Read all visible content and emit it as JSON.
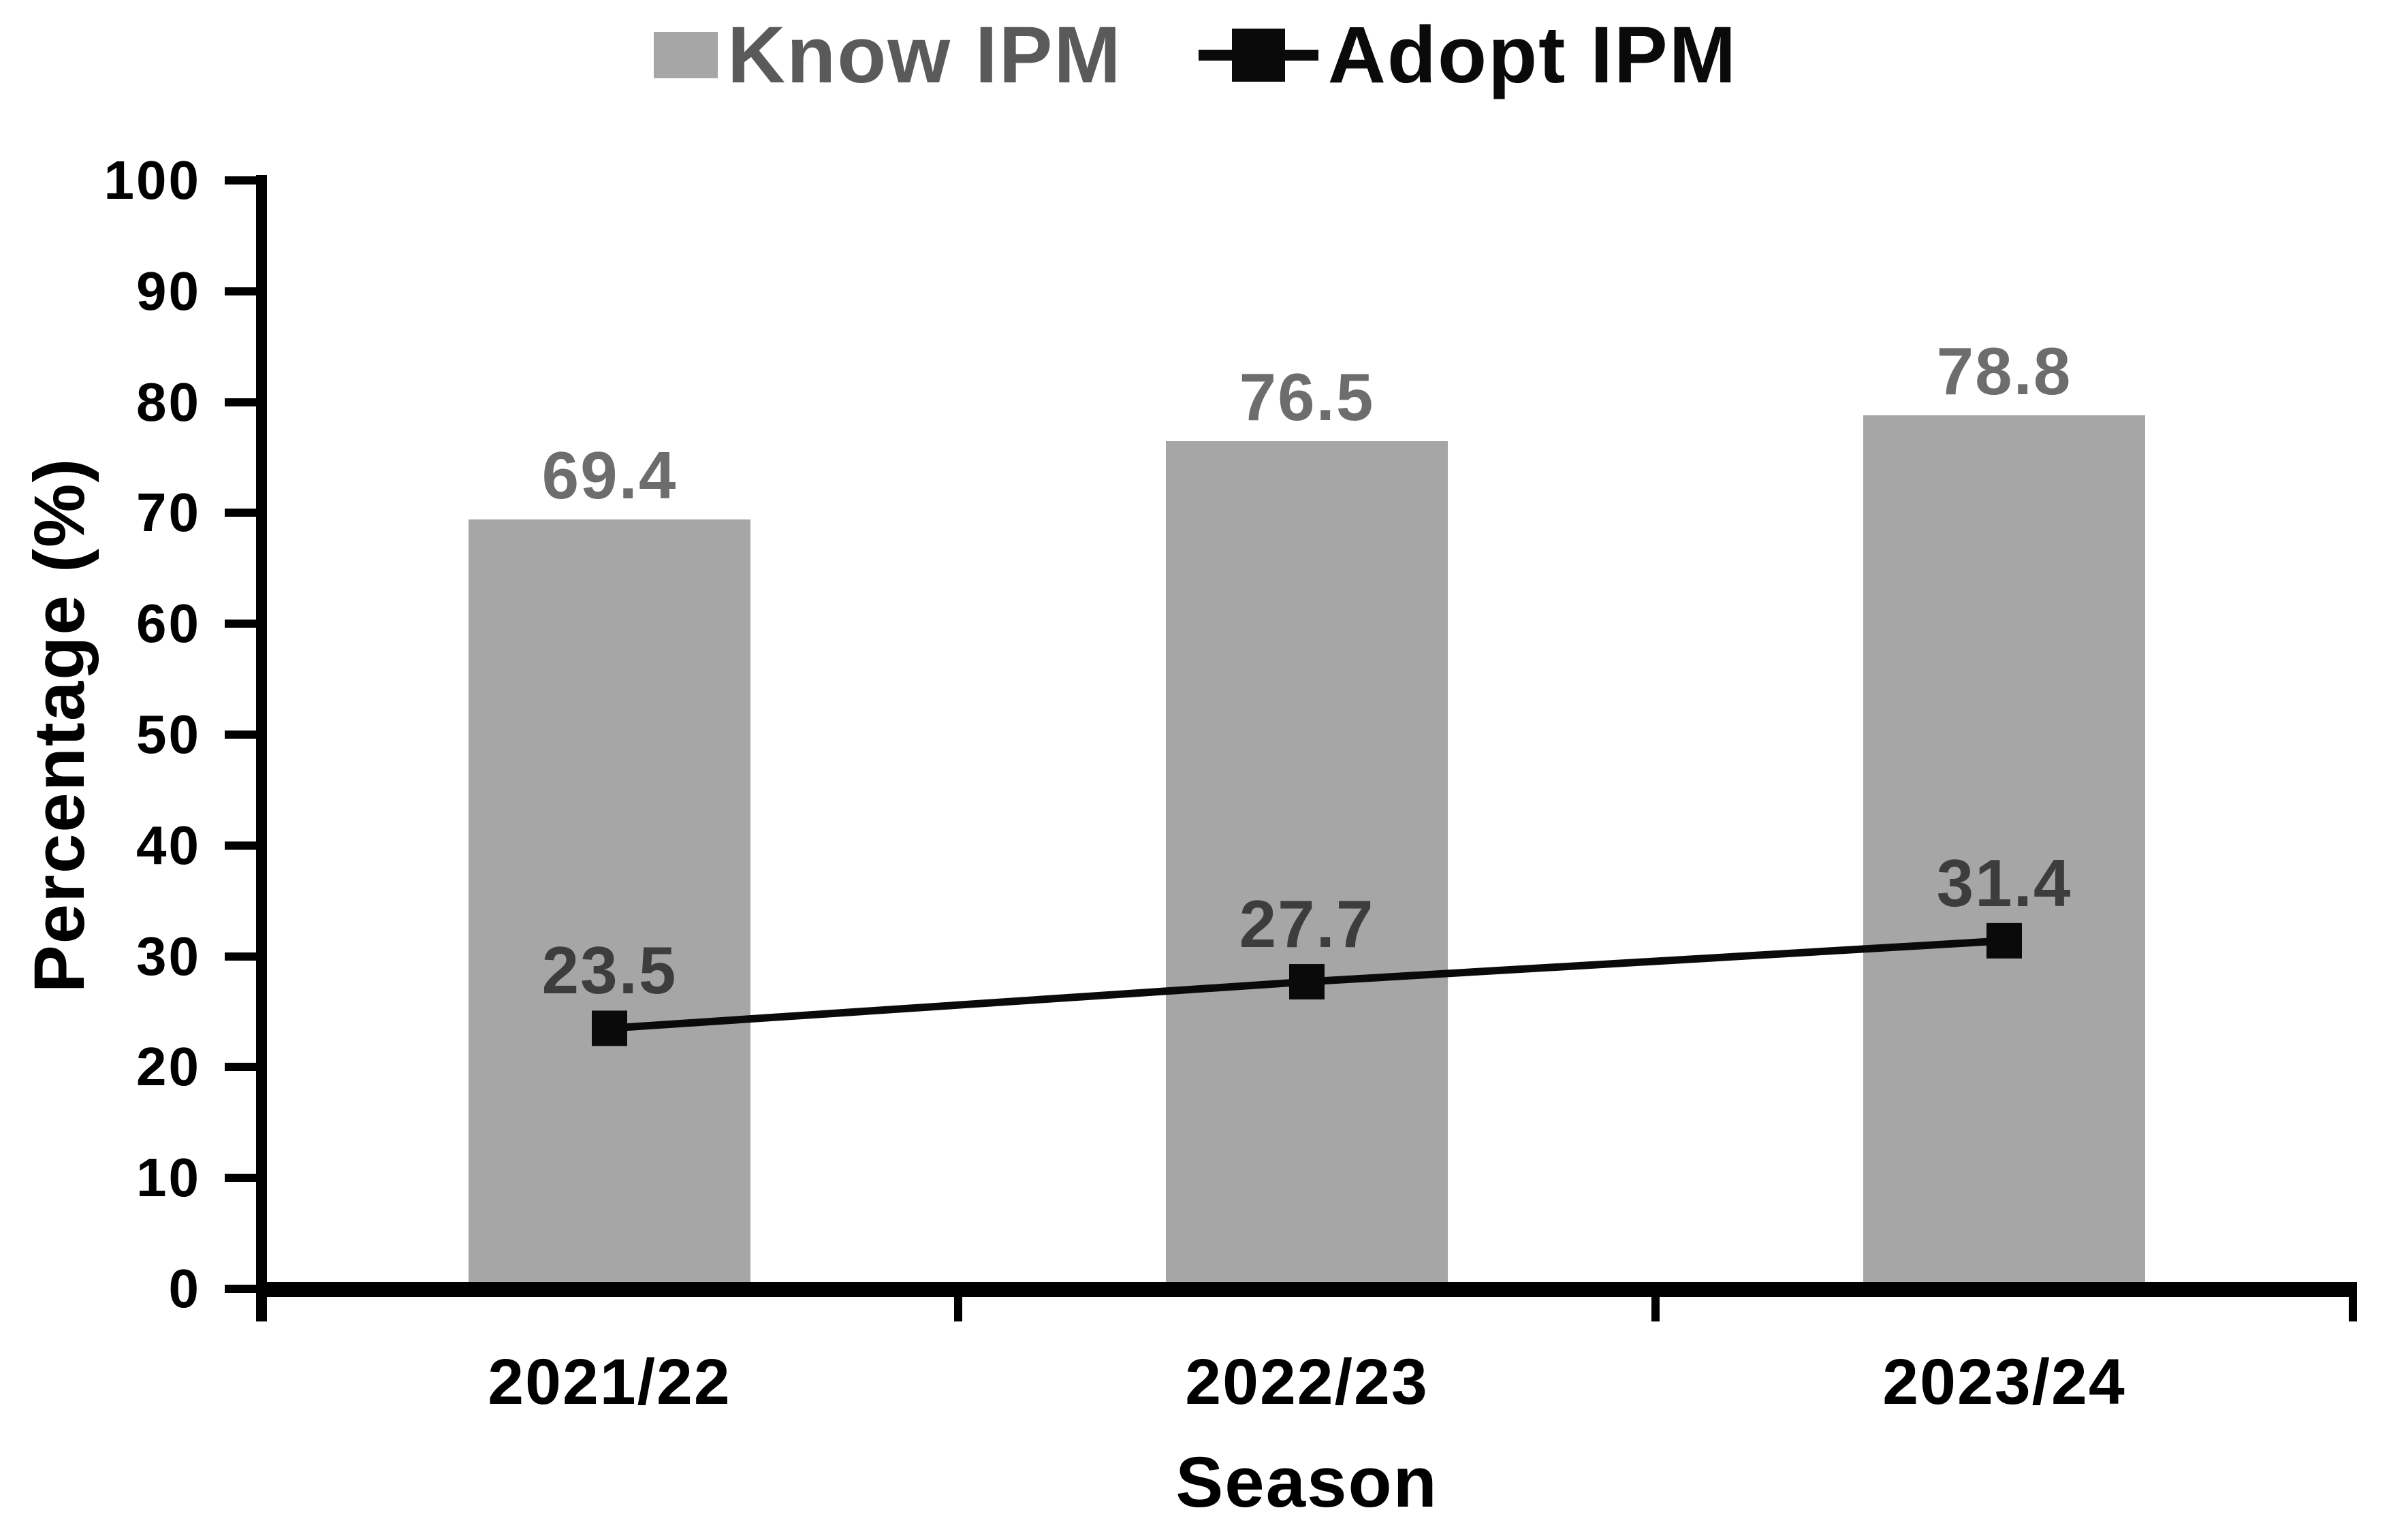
{
  "chart_data": {
    "type": "combo",
    "title": "",
    "categories": [
      "2021/22",
      "2022/23",
      "2023/24"
    ],
    "series": [
      {
        "name": "Know IPM",
        "type": "bar",
        "values": [
          69.4,
          76.5,
          78.8
        ],
        "data_labels": [
          "69.4",
          "76.5",
          "78.8"
        ],
        "color": "#a6a6a6",
        "label_color": "#6d6d6d",
        "legend_text_color": "#5a5a5a"
      },
      {
        "name": "Adopt IPM",
        "type": "line",
        "values": [
          23.5,
          27.7,
          31.4
        ],
        "data_labels": [
          "23.5",
          "27.7",
          "31.4"
        ],
        "color": "#0a0a0a",
        "label_color": "#3d3d3d",
        "legend_text_color": "#0a0a0a"
      }
    ],
    "xlabel": "Season",
    "ylabel": "Percentage (%)",
    "ylim": [
      0,
      100
    ],
    "yticks": [
      0,
      10,
      20,
      30,
      40,
      50,
      60,
      70,
      80,
      90,
      100
    ],
    "grid": false,
    "legend_position": "top",
    "axis_color": "#000000",
    "background_color": "#ffffff"
  }
}
